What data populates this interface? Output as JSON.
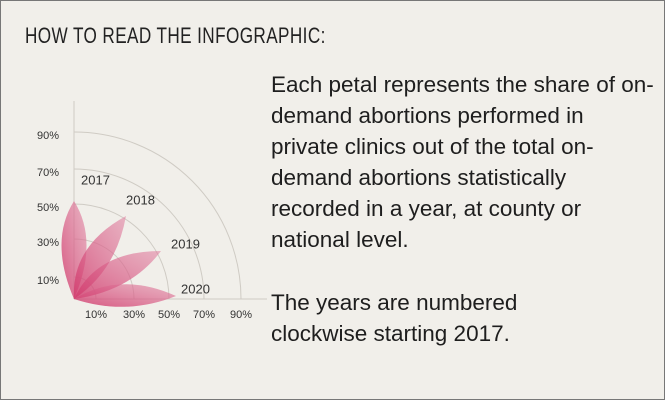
{
  "header": {
    "title": "HOW TO READ THE INFOGRAPHIC:"
  },
  "description": [
    "Each petal represents the share of on-demand abortions performed in private clinics out of the total on-demand abortions statistically recorded in a year, at county or national level.",
    "The years are numbered clockwise starting 2017."
  ],
  "diagram": {
    "y_axis_labels": [
      "10%",
      "30%",
      "50%",
      "70%",
      "90%"
    ],
    "x_axis_labels": [
      "10%",
      "30%",
      "50%",
      "70%",
      "90%"
    ],
    "years": [
      "2017",
      "2018",
      "2019",
      "2020"
    ]
  }
}
